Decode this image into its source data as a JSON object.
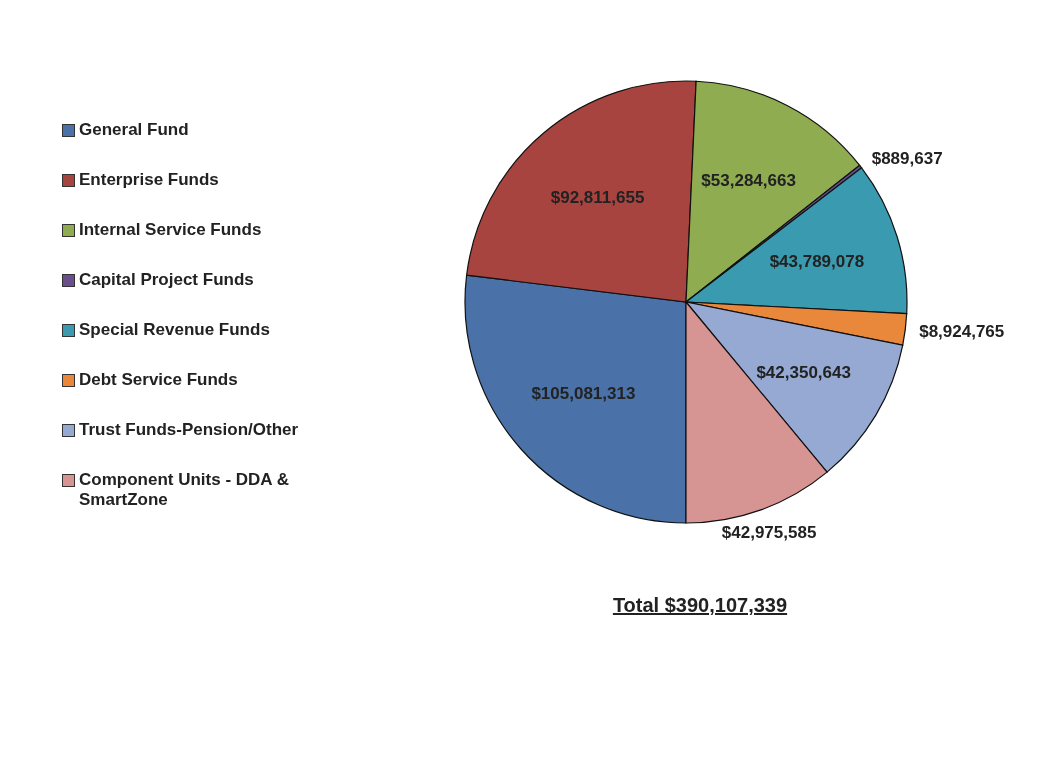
{
  "chart_data": {
    "type": "pie",
    "categories": [
      "General Fund",
      "Enterprise Funds",
      "Internal Service Funds",
      "Capital Project Funds",
      "Special Revenue Funds",
      "Debt Service Funds",
      "Trust Funds-Pension/Other",
      "Component Units - DDA & SmartZone"
    ],
    "values": [
      105081313,
      92811655,
      53284663,
      889637,
      43789078,
      8924765,
      42350643,
      42975585
    ],
    "value_labels": [
      "$105,081,313",
      "$92,811,655",
      "$53,284,663",
      "$889,637",
      "$43,789,078",
      "$8,924,765",
      "$42,350,643",
      "$42,975,585"
    ],
    "colors": [
      "#4a72a8",
      "#a84440",
      "#8fac50",
      "#6a4f8c",
      "#3a9ab0",
      "#e9883a",
      "#95a9d2",
      "#d69492"
    ],
    "legend": "left",
    "annotations": [
      "Total $390,107,339"
    ]
  }
}
